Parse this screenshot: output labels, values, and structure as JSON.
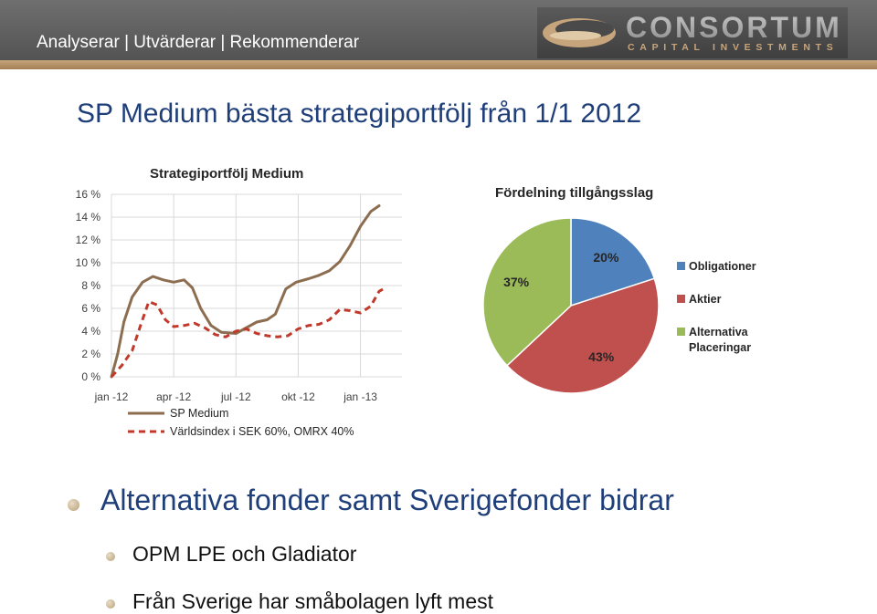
{
  "header": {
    "tagline": "Analyserar | Utvärderar | Rekommenderar",
    "logo_name": "CONSORTUM",
    "logo_sub": "CAPITAL INVESTMENTS"
  },
  "page": {
    "title": "SP Medium bästa strategiportfölj från 1/1 2012"
  },
  "chart_data": [
    {
      "type": "line",
      "title": "Strategiportfölj Medium",
      "xlabel": "",
      "ylabel": "",
      "xlim": [
        0,
        14
      ],
      "ylim": [
        0,
        16
      ],
      "x_ticks": [
        {
          "x": 0,
          "label": "jan -12"
        },
        {
          "x": 3,
          "label": "apr -12"
        },
        {
          "x": 6,
          "label": "jul -12"
        },
        {
          "x": 9,
          "label": "okt -12"
        },
        {
          "x": 12,
          "label": "jan -13"
        }
      ],
      "y_ticks": [
        {
          "y": 0,
          "label": "0 %"
        },
        {
          "y": 2,
          "label": "2 %"
        },
        {
          "y": 4,
          "label": "4 %"
        },
        {
          "y": 6,
          "label": "6 %"
        },
        {
          "y": 8,
          "label": "8 %"
        },
        {
          "y": 10,
          "label": "10 %"
        },
        {
          "y": 12,
          "label": "12 %"
        },
        {
          "y": 14,
          "label": "14 %"
        },
        {
          "y": 16,
          "label": "16 %"
        }
      ],
      "grid": true,
      "legend": "bottom",
      "series": [
        {
          "name": "SP Medium",
          "color": "#8c6d4f",
          "dash": "solid",
          "points": [
            [
              0,
              0
            ],
            [
              0.3,
              2
            ],
            [
              0.6,
              4.8
            ],
            [
              1,
              7
            ],
            [
              1.5,
              8.3
            ],
            [
              2,
              8.8
            ],
            [
              2.5,
              8.5
            ],
            [
              3,
              8.3
            ],
            [
              3.5,
              8.5
            ],
            [
              3.9,
              7.8
            ],
            [
              4.3,
              6
            ],
            [
              4.8,
              4.5
            ],
            [
              5.3,
              3.9
            ],
            [
              6,
              3.8
            ],
            [
              6.4,
              4.2
            ],
            [
              7,
              4.8
            ],
            [
              7.5,
              5
            ],
            [
              7.9,
              5.5
            ],
            [
              8.4,
              7.7
            ],
            [
              8.9,
              8.3
            ],
            [
              9.5,
              8.6
            ],
            [
              10,
              8.9
            ],
            [
              10.5,
              9.3
            ],
            [
              11,
              10.1
            ],
            [
              11.5,
              11.5
            ],
            [
              12,
              13.2
            ],
            [
              12.5,
              14.5
            ],
            [
              12.9,
              15
            ]
          ]
        },
        {
          "name": "Världsindex i SEK 60%, OMRX 40%",
          "color": "#c0392b",
          "dash": "dashed",
          "points": [
            [
              0,
              0
            ],
            [
              0.5,
              1
            ],
            [
              1,
              2.3
            ],
            [
              1.4,
              4.5
            ],
            [
              1.8,
              6.6
            ],
            [
              2.2,
              6.3
            ],
            [
              2.6,
              5
            ],
            [
              3,
              4.4
            ],
            [
              3.5,
              4.5
            ],
            [
              4,
              4.7
            ],
            [
              4.5,
              4.3
            ],
            [
              5,
              3.7
            ],
            [
              5.5,
              3.5
            ],
            [
              6,
              4
            ],
            [
              6.5,
              4.2
            ],
            [
              7,
              3.8
            ],
            [
              7.5,
              3.6
            ],
            [
              8,
              3.5
            ],
            [
              8.5,
              3.6
            ],
            [
              9,
              4.2
            ],
            [
              9.5,
              4.5
            ],
            [
              10,
              4.6
            ],
            [
              10.5,
              5
            ],
            [
              11,
              5.9
            ],
            [
              11.5,
              5.8
            ],
            [
              12,
              5.6
            ],
            [
              12.5,
              6.2
            ],
            [
              12.9,
              7.5
            ],
            [
              13.2,
              7.8
            ]
          ]
        }
      ]
    },
    {
      "type": "pie",
      "title": "Fördelning tillgångsslag",
      "legend": "right",
      "slices": [
        {
          "label": "Obligationer",
          "value": 20,
          "display": "20%",
          "color": "#4f81bd"
        },
        {
          "label": "Aktier",
          "value": 43,
          "display": "43%",
          "color": "#c0504d"
        },
        {
          "label": "Alternativa Placeringar",
          "label_lines": [
            "Alternativa",
            "Placeringar"
          ],
          "value": 37,
          "display": "37%",
          "color": "#9bbb59"
        }
      ]
    }
  ],
  "bullets": {
    "main": "Alternativa fonder samt Sverigefonder bidrar",
    "sub1": "OPM LPE och Gladiator",
    "sub2": "Från Sverige har småbolagen lyft mest"
  }
}
